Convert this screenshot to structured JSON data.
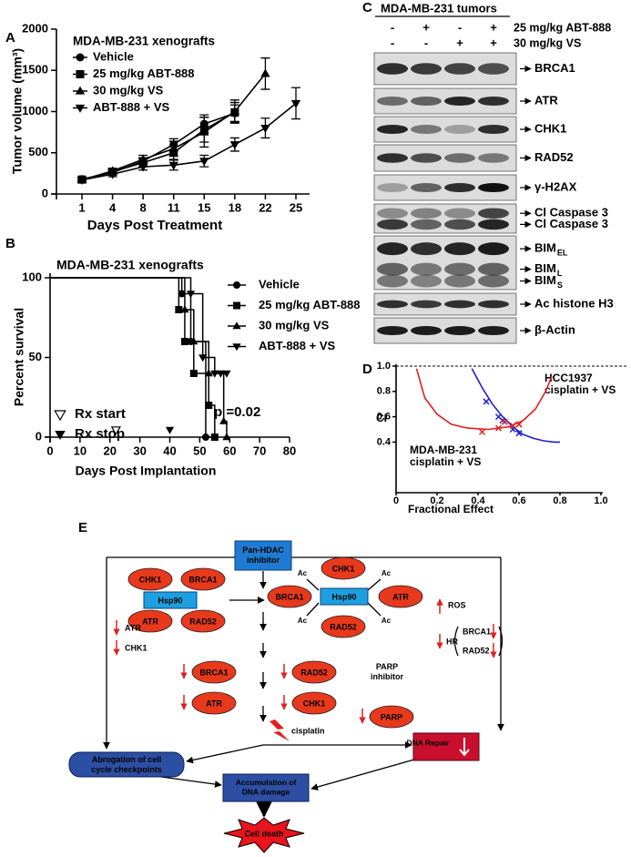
{
  "panel_labels": [
    "A",
    "B",
    "C",
    "D",
    "E"
  ],
  "chart_data": [
    {
      "type": "line",
      "title": "MDA-MB-231 xenografts",
      "x_label": "Days Post Treatment",
      "y_label": "Tumor volume (mm³)",
      "categories": [
        "1",
        "4",
        "8",
        "11",
        "15",
        "18",
        "22",
        "25"
      ],
      "ylim": [
        0,
        2000
      ],
      "yticks": [
        0,
        500,
        1000,
        1500,
        2000
      ],
      "series": [
        {
          "name": "Vehicle",
          "marker": "circle",
          "color": "#000000",
          "values": [
            180,
            260,
            400,
            600,
            850,
            980,
            null,
            null
          ],
          "errors": [
            20,
            30,
            40,
            70,
            110,
            100,
            null,
            null
          ]
        },
        {
          "name": "25 mg/kg ABT-888",
          "marker": "square",
          "color": "#000000",
          "values": [
            175,
            270,
            380,
            500,
            780,
            990,
            null,
            null
          ],
          "errors": [
            20,
            30,
            50,
            80,
            150,
            120,
            null,
            null
          ]
        },
        {
          "name": "30 mg/kg VS",
          "marker": "triangle",
          "color": "#000000",
          "values": [
            170,
            280,
            420,
            550,
            750,
            1000,
            1460,
            null
          ],
          "errors": [
            20,
            30,
            50,
            90,
            180,
            140,
            190,
            null
          ]
        },
        {
          "name": "ABT-888 + VS",
          "marker": "inverted-triangle",
          "color": "#000000",
          "values": [
            170,
            240,
            330,
            350,
            400,
            600,
            800,
            1100
          ],
          "errors": [
            20,
            30,
            40,
            60,
            70,
            80,
            120,
            190
          ]
        }
      ]
    },
    {
      "type": "step",
      "title": "MDA-MB-231 xenografts",
      "x_label": "Days Post Implantation",
      "y_label": "Percent survival",
      "xlim": [
        0,
        80
      ],
      "xticks": [
        0,
        10,
        20,
        30,
        40,
        50,
        60,
        70,
        80
      ],
      "ylim": [
        0,
        100
      ],
      "yticks": [
        0,
        50,
        100
      ],
      "series": [
        {
          "name": "Vehicle",
          "marker": "circle",
          "color": "#000000",
          "x": [
            0,
            44,
            47,
            52,
            55
          ],
          "values": [
            100,
            90,
            60,
            0,
            0
          ]
        },
        {
          "name": "25 mg/kg ABT-888",
          "marker": "square",
          "color": "#000000",
          "x": [
            0,
            43,
            45,
            48,
            53,
            55
          ],
          "values": [
            100,
            80,
            60,
            40,
            20,
            0
          ]
        },
        {
          "name": "30 mg/kg VS",
          "marker": "triangle",
          "color": "#000000",
          "x": [
            0,
            45,
            48,
            53,
            58,
            59
          ],
          "values": [
            100,
            80,
            60,
            40,
            10,
            0
          ]
        },
        {
          "name": "ABT-888 + VS",
          "marker": "inverted-triangle",
          "color": "#000000",
          "x": [
            0,
            47,
            51,
            55,
            57,
            59
          ],
          "values": [
            100,
            90,
            50,
            40,
            40,
            40
          ]
        }
      ],
      "annotations": [
        {
          "text": "Rx start",
          "marker": "open-inverted-triangle",
          "x": 22,
          "y": 0
        },
        {
          "text": "Rx stop",
          "marker": "inverted-triangle",
          "x": 40,
          "y": 0
        }
      ],
      "p_value": "p =0.02"
    },
    {
      "type": "scatter",
      "x_label": "Fractional Effect",
      "y_label": "CI",
      "xlim": [
        0,
        1
      ],
      "xticks": [
        0,
        0.2,
        0.4,
        0.6,
        0.8,
        {
          "value": 1,
          "label": "1.0"
        }
      ],
      "ylim": [
        0,
        1
      ],
      "yticks": [
        0.4,
        0.6,
        0.8,
        {
          "value": 1,
          "label": "1.0"
        }
      ],
      "reference_line": 1,
      "series": [
        {
          "name": "HCC1937",
          "note": "cisplatin + VS",
          "color": "#1f1fd0",
          "x": [
            0.44,
            0.5,
            0.52,
            0.57,
            0.6
          ],
          "values": [
            0.72,
            0.6,
            0.57,
            0.5,
            0.47
          ],
          "curve_x": [
            0.37,
            0.42,
            0.47,
            0.52,
            0.57,
            0.62,
            0.67,
            0.72,
            0.77,
            0.8
          ],
          "curve_values": [
            0.98,
            0.83,
            0.7,
            0.6,
            0.52,
            0.46,
            0.43,
            0.41,
            0.4,
            0.4
          ]
        },
        {
          "name": "MDA-MB-231",
          "note": "cisplatin + VS",
          "color": "#e02020",
          "x": [
            0.42,
            0.5,
            0.53,
            0.57,
            0.6
          ],
          "values": [
            0.48,
            0.51,
            0.56,
            0.53,
            0.54
          ],
          "curve_x": [
            0.1,
            0.14,
            0.2,
            0.27,
            0.35,
            0.45,
            0.55,
            0.62,
            0.68,
            0.73,
            0.76
          ],
          "curve_values": [
            0.98,
            0.75,
            0.62,
            0.54,
            0.51,
            0.5,
            0.52,
            0.57,
            0.66,
            0.8,
            0.92
          ]
        }
      ]
    }
  ],
  "blot": {
    "title": "MDA-MB-231 tumors",
    "treatments": [
      {
        "label": "25 mg/kg ABT-888",
        "lanes": [
          "-",
          "+",
          "-",
          "+"
        ]
      },
      {
        "label": "30 mg/kg VS",
        "lanes": [
          "-",
          "-",
          "+",
          "+"
        ]
      }
    ],
    "panels": [
      {
        "labels": [
          {
            "text": "BRCA1"
          }
        ]
      },
      {
        "labels": [
          {
            "text": "ATR"
          }
        ]
      },
      {
        "labels": [
          {
            "text": "CHK1"
          }
        ]
      },
      {
        "labels": [
          {
            "text": "RAD52"
          }
        ]
      },
      {
        "labels": [
          {
            "text": "γ-H2AX"
          }
        ]
      },
      {
        "labels": [
          {
            "text": "Cl Caspase 3"
          },
          {
            "text": "Cl Caspase 3"
          }
        ]
      },
      {
        "labels": [
          {
            "text": "BIM",
            "sub": "EL"
          },
          {
            "text": "BIM",
            "sub": "L"
          },
          {
            "text": "BIM",
            "sub": "S"
          }
        ]
      },
      {
        "labels": [
          {
            "text": "Ac histone H3"
          }
        ]
      },
      {
        "labels": [
          {
            "text": "β-Actin"
          }
        ]
      }
    ]
  },
  "diagram": {
    "inhibitor": [
      "Pan-HDAC",
      "inhibitor"
    ],
    "hsp90": "Hsp90",
    "ac": "Ac",
    "left_complex": [
      "CHK1",
      "BRCA1",
      "ATR",
      "RAD52"
    ],
    "right_complex": [
      "CHK1",
      "BRCA1",
      "ATR",
      "RAD52"
    ],
    "downregulated": [
      "BRCA1",
      "RAD52",
      "ATR",
      "CHK1"
    ],
    "left_notes": [
      "ATR",
      "CHK1"
    ],
    "ros": "ROS",
    "hr": "HR",
    "hr_targets": [
      "BRCA1",
      "RAD52"
    ],
    "cisplatin": "cisplatin",
    "parp_inhibitor": [
      "PARP",
      "inhibitor"
    ],
    "parp": "PARP",
    "checkpoint": [
      "Abrogation of cell",
      "cycle checkpoints"
    ],
    "damage": [
      "Accumulation of",
      "DNA damage"
    ],
    "repair": "DNA Repair",
    "death": "Cell death"
  }
}
